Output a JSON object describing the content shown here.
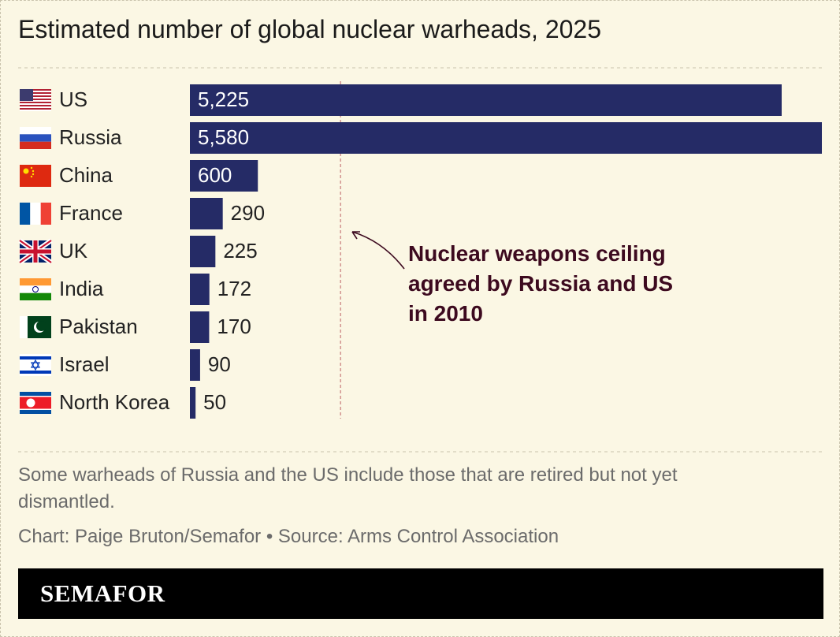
{
  "chart_data": {
    "type": "bar",
    "orientation": "horizontal",
    "title": "Estimated number of global nuclear warheads, 2025",
    "categories": [
      "US",
      "Russia",
      "China",
      "France",
      "UK",
      "India",
      "Pakistan",
      "Israel",
      "North Korea"
    ],
    "values": [
      5225,
      5580,
      600,
      290,
      225,
      172,
      170,
      90,
      50
    ],
    "value_labels": [
      "5,225",
      "5,580",
      "600",
      "290",
      "225",
      "172",
      "170",
      "90",
      "50"
    ],
    "color": "#252b66",
    "xlim": [
      0,
      5580
    ],
    "reference_line": {
      "value": 1330,
      "label": "Nuclear weapons ceiling agreed by Russia and US in 2010"
    },
    "note": "Some warheads of Russia and the US include those that are retired but not yet dismantled.",
    "credit": "Chart: Paige Bruton/Semafor • Source: Arms Control Association",
    "brand": "SEMAFOR"
  }
}
